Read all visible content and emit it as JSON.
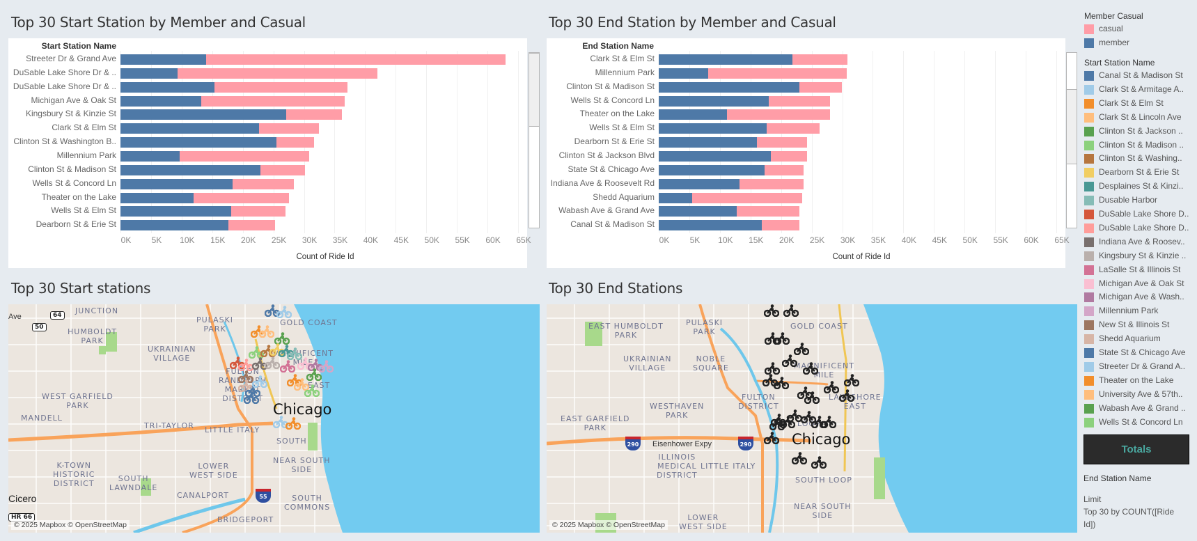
{
  "dashboard": {
    "start_chart": {
      "title": "Top 30 Start Station by Member and Casual",
      "dimension_header": "Start Station Name",
      "axis_title": "Count of Ride Id"
    },
    "end_chart": {
      "title": "Top 30 End Station by Member and Casual",
      "dimension_header": "End Station Name",
      "axis_title": "Count of Ride Id"
    },
    "start_map": {
      "title": "Top 30 Start stations",
      "attribution": "© 2025 Mapbox © OpenStreetMap",
      "city_label": "Chicago",
      "labels": [
        "JUNCTION",
        "HUMBOLDT\nPARK",
        "PULASKI\nPARK",
        "GOLD COAST",
        "UKRAINIAN\nVILLAGE",
        "MAGNIFICENT\nMILE",
        "FULTON\nRANDOLPH\nMARKET\nDISTRICT",
        "WEST GARFIELD\nPARK",
        "MANDELL",
        "TRI-TAYLOR",
        "LITTLE ITALY",
        "SOUTH",
        "K-TOWN\nHISTORIC\nDISTRICT",
        "SOUTH\nLAWNDALE",
        "LOWER\nWEST SIDE",
        "NEAR SOUTH\nSIDE",
        "CANALPORT",
        "SOUTH\nCOMMONS",
        "BRIDGEPORT",
        "EAST"
      ],
      "places": [
        "Cicero"
      ],
      "road_labels": [
        "Ave"
      ],
      "shields": [
        "64",
        "50",
        "HR 66"
      ],
      "interstates": [
        "55"
      ]
    },
    "end_map": {
      "title": "Top 30 End Stations",
      "attribution": "© 2025 Mapbox © OpenStreetMap",
      "city_label": "Chicago",
      "labels": [
        "EAST HUMBOLDT\nPARK",
        "PULASKI\nPARK",
        "GOLD COAST",
        "UKRAINIAN\nVILLAGE",
        "NOBLE\nSQUARE",
        "MAGNIFICENT\nMILE",
        "FULTON\nDISTRICT",
        "LAKESHORE\nEAST",
        "WESTHAVEN\nPARK",
        "EAST GARFIELD\nPARK",
        "ILLINOIS\nMEDICAL\nDISTRICT",
        "LITTLE ITALY",
        "LOOP",
        "SOUTH LOOP",
        "NEAR SOUTH\nSIDE",
        "LOWER\nWEST SIDE"
      ],
      "road_labels": [
        "Eisenhower Expy"
      ],
      "interstates": [
        "290",
        "290"
      ]
    },
    "legend": {
      "member_casual_title": "Member Casual",
      "member_casual_items": [
        {
          "label": "casual",
          "color": "#ff9da7"
        },
        {
          "label": "member",
          "color": "#4e79a7"
        }
      ],
      "station_title": "Start Station Name",
      "station_items": [
        {
          "label": "Canal St & Madison St",
          "color": "#4e79a7"
        },
        {
          "label": "Clark St & Armitage A..",
          "color": "#a0cbe8"
        },
        {
          "label": "Clark St & Elm St",
          "color": "#f28e2b"
        },
        {
          "label": "Clark St & Lincoln Ave",
          "color": "#ffbe7d"
        },
        {
          "label": "Clinton St & Jackson ..",
          "color": "#59a14f"
        },
        {
          "label": "Clinton St & Madison ..",
          "color": "#8cd17d"
        },
        {
          "label": "Clinton St & Washing..",
          "color": "#b6763f"
        },
        {
          "label": "Dearborn St & Erie St",
          "color": "#f1ce63"
        },
        {
          "label": "Desplaines St & Kinzi..",
          "color": "#499894"
        },
        {
          "label": "Dusable Harbor",
          "color": "#86bcb6"
        },
        {
          "label": "DuSable Lake Shore D..",
          "color": "#d5573b"
        },
        {
          "label": "DuSable Lake Shore D..",
          "color": "#ff9d9a"
        },
        {
          "label": "Indiana Ave & Roosev..",
          "color": "#79706e"
        },
        {
          "label": "Kingsbury St & Kinzie ..",
          "color": "#bab0ac"
        },
        {
          "label": "LaSalle St & Illinois St",
          "color": "#d37295"
        },
        {
          "label": "Michigan Ave & Oak St",
          "color": "#fabfd2"
        },
        {
          "label": "Michigan Ave & Wash..",
          "color": "#b07aa1"
        },
        {
          "label": "Millennium Park",
          "color": "#d4a6c8"
        },
        {
          "label": "New St & Illinois St",
          "color": "#9d7660"
        },
        {
          "label": "Shedd Aquarium",
          "color": "#d7b5a6"
        },
        {
          "label": "State St & Chicago Ave",
          "color": "#4e79a7"
        },
        {
          "label": "Streeter Dr & Grand A..",
          "color": "#a0cbe8"
        },
        {
          "label": "Theater on the Lake",
          "color": "#f28e2b"
        },
        {
          "label": "University Ave & 57th..",
          "color": "#ffbe7d"
        },
        {
          "label": "Wabash Ave & Grand ..",
          "color": "#59a14f"
        },
        {
          "label": "Wells St & Concord Ln",
          "color": "#8cd17d"
        }
      ]
    },
    "totals_button": "Totals",
    "filter_info": {
      "field": "End Station Name",
      "limit_label": "Limit",
      "limit_value": "Top 30 by COUNT([Ride Id])"
    },
    "colors": {
      "member": "#4e79a7",
      "casual": "#ff9da7",
      "background": "#e6ebf0"
    }
  },
  "chart_data": [
    {
      "type": "bar",
      "orientation": "horizontal",
      "stacked": true,
      "title": "Top 30 Start Station by Member and Casual",
      "xlabel": "Count of Ride Id",
      "ylabel": "Start Station Name",
      "xlim": [
        0,
        65000
      ],
      "x_ticks": [
        "0K",
        "5K",
        "10K",
        "15K",
        "20K",
        "25K",
        "30K",
        "35K",
        "40K",
        "45K",
        "50K",
        "55K",
        "60K",
        "65K"
      ],
      "grid": true,
      "legend": "right",
      "categories": [
        "Streeter Dr & Grand Ave",
        "DuSable Lake Shore Dr & ..",
        "DuSable Lake Shore Dr & ..",
        "Michigan Ave & Oak St",
        "Kingsbury St & Kinzie St",
        "Clark St & Elm St",
        "Clinton St & Washington B..",
        "Millennium Park",
        "Clinton St & Madison St",
        "Wells St & Concord Ln",
        "Theater on the Lake",
        "Wells St & Elm St",
        "Dearborn St & Erie St"
      ],
      "series": [
        {
          "name": "member",
          "values": [
            14000,
            9300,
            15400,
            13200,
            27100,
            22700,
            25500,
            9700,
            22900,
            18300,
            12000,
            18100,
            17600
          ]
        },
        {
          "name": "casual",
          "values": [
            49000,
            32700,
            21700,
            23400,
            9100,
            9700,
            6100,
            21200,
            7300,
            10000,
            15600,
            8900,
            7700
          ]
        }
      ]
    },
    {
      "type": "bar",
      "orientation": "horizontal",
      "stacked": true,
      "title": "Top 30 End Station by Member and Casual",
      "xlabel": "Count of Ride Id",
      "ylabel": "End Station Name",
      "xlim": [
        0,
        65000
      ],
      "x_ticks": [
        "0K",
        "5K",
        "10K",
        "15K",
        "20K",
        "25K",
        "30K",
        "35K",
        "40K",
        "45K",
        "50K",
        "55K",
        "60K",
        "65K"
      ],
      "grid": true,
      "legend": "right",
      "categories": [
        "Clark St & Elm St",
        "Millennium Park",
        "Clinton St & Madison St",
        "Wells St & Concord Ln",
        "Theater on the Lake",
        "Wells St & Elm St",
        "Dearborn St & Erie St",
        "Clinton St & Jackson Blvd",
        "State St & Chicago Ave",
        "Indiana Ave & Roosevelt Rd",
        "Shedd Aquarium",
        "Wabash Ave & Grand Ave",
        "Canal St & Madison St"
      ],
      "series": [
        {
          "name": "member",
          "values": [
            21900,
            8100,
            23000,
            18000,
            11200,
            17600,
            16100,
            18300,
            17300,
            13200,
            5500,
            12700,
            16900
          ]
        },
        {
          "name": "casual",
          "values": [
            9000,
            22600,
            6900,
            10000,
            16800,
            8700,
            8200,
            5900,
            6400,
            10500,
            18000,
            10300,
            6100
          ]
        }
      ]
    }
  ]
}
